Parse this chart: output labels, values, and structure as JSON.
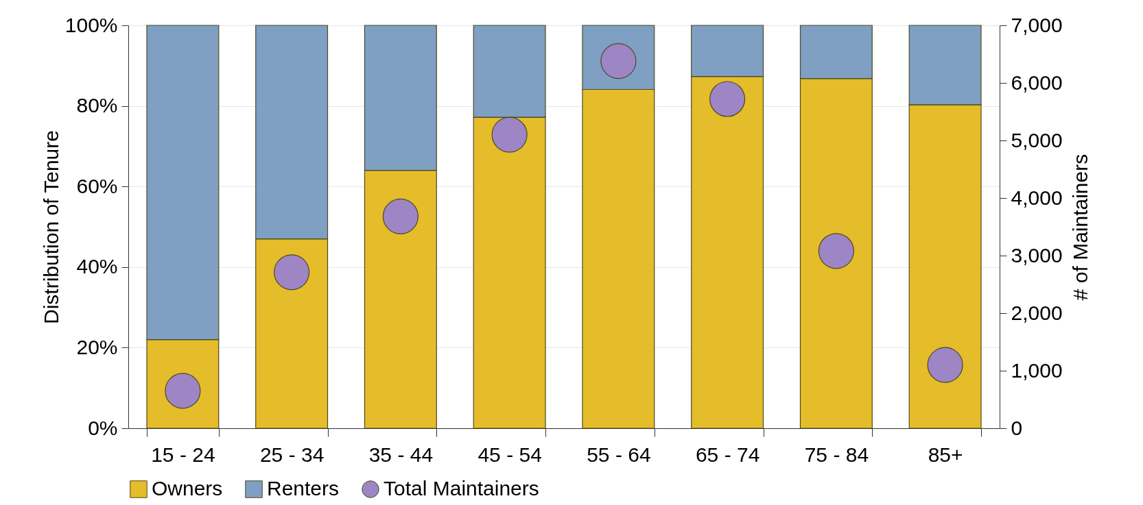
{
  "chart_data": {
    "type": "bar",
    "stacked": true,
    "ylabel": "Distribution of Tenure",
    "y2label": "# of Maintainers",
    "categories": [
      "15 - 24",
      "25 - 34",
      "35 - 44",
      "45 - 54",
      "55 - 64",
      "65 - 74",
      "75 - 84",
      "85+"
    ],
    "series": [
      {
        "name": "Owners",
        "color": "#e5bc2a",
        "values": [
          22,
          47,
          64,
          77.2,
          84.1,
          87.3,
          86.8,
          80.3
        ]
      },
      {
        "name": "Renters",
        "color": "#7f9fc3",
        "values": [
          78,
          53,
          36,
          22.8,
          15.9,
          12.7,
          13.2,
          19.7
        ]
      },
      {
        "name": "Total Maintainers",
        "type": "scatter",
        "axis": "y2",
        "color": "#9e85c4",
        "values": [
          650,
          2710,
          3680,
          5100,
          6380,
          5720,
          3080,
          1100
        ]
      }
    ],
    "ylim": [
      0,
      100
    ],
    "yticks": [
      {
        "value": 0,
        "label": "0%"
      },
      {
        "value": 20,
        "label": "20%"
      },
      {
        "value": 40,
        "label": "40%"
      },
      {
        "value": 60,
        "label": "60%"
      },
      {
        "value": 80,
        "label": "80%"
      },
      {
        "value": 100,
        "label": "100%"
      }
    ],
    "y2lim": [
      0,
      7000
    ],
    "y2ticks": [
      0,
      {
        "value": 1000,
        "label": "1,000"
      },
      {
        "value": 2000,
        "label": "2,000"
      },
      {
        "value": 3000,
        "label": "3,000"
      },
      {
        "value": 4000,
        "label": "4,000"
      },
      {
        "value": 5000,
        "label": "5,000"
      },
      {
        "value": 6000,
        "label": "6,000"
      },
      {
        "value": 7000,
        "label": "7,000"
      }
    ],
    "grid": "y",
    "legend": "bottom",
    "marker": "circle"
  }
}
